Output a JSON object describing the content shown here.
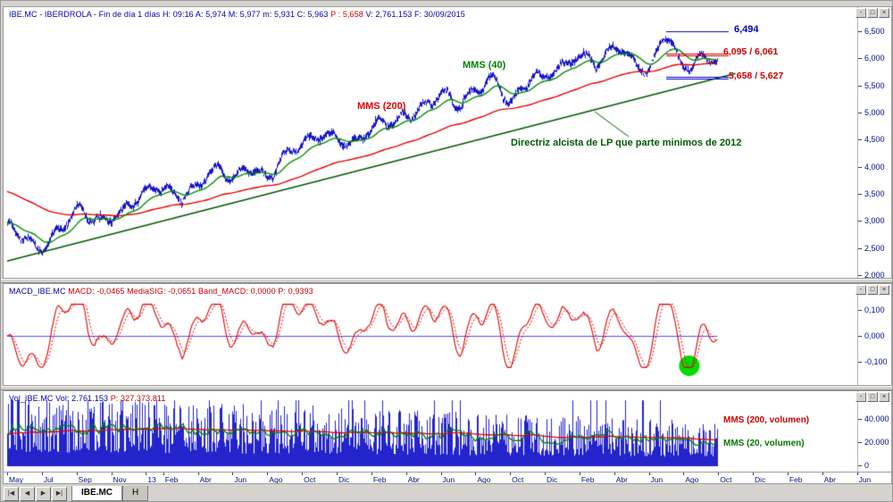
{
  "window_controls": {
    "minimize": "-",
    "maximize": "□",
    "close": "×"
  },
  "price_panel": {
    "header": {
      "left": "IBE.MC - IBERDROLA - Fin de día 1 días   H: 09:16   A: 5,974   M: 5,977   m: 5,931   C: 5,963   ",
      "mid": "P : 5,658",
      "right": "   V: 2,761.153   F: 30/09/2015"
    },
    "labels": {
      "mms40": "MMS (40)",
      "mms200": "MMS (200)",
      "trend": "Directriz alcista de LP que parte minimos de 2012"
    },
    "annotations": [
      {
        "label": "6,494"
      },
      {
        "label": "6,095 / 6,061"
      },
      {
        "label": "5,658 / 5,627"
      }
    ],
    "y_ticks": [
      {
        "label": "6,500",
        "value": 6.5
      },
      {
        "label": "6,000",
        "value": 6.0
      },
      {
        "label": "5,500",
        "value": 5.5
      },
      {
        "label": "5,000",
        "value": 5.0
      },
      {
        "label": "4,500",
        "value": 4.5
      },
      {
        "label": "4,000",
        "value": 4.0
      },
      {
        "label": "3,500",
        "value": 3.5
      },
      {
        "label": "3,000",
        "value": 3.0
      },
      {
        "label": "2,500",
        "value": 2.5
      },
      {
        "label": "2,000",
        "value": 2.0
      }
    ]
  },
  "macd_panel": {
    "header": {
      "name": "MACD_IBE.MC   ",
      "values": "MACD: -0,0465   MediaSIG: -0,0651   Band_MACD: 0,0000   ",
      "p": "P: 0,9393"
    },
    "y_ticks": [
      {
        "label": "0,100",
        "value": 0.1
      },
      {
        "label": "0,000",
        "value": 0.0
      },
      {
        "label": "-0,100",
        "value": -0.1
      }
    ]
  },
  "vol_panel": {
    "header": {
      "name": "Vol_IBE.MC   ",
      "values": "Vol: 2.761.153   ",
      "p": "P: 327.373.811"
    },
    "labels": {
      "mms200": "MMS (200, volumen)",
      "mms20": "MMS (20, volumen)"
    },
    "y_ticks": [
      {
        "label": "40.000",
        "value": 40000
      },
      {
        "label": "20.000",
        "value": 20000
      },
      {
        "label": "0",
        "value": 0
      }
    ]
  },
  "x_axis": {
    "labels": [
      {
        "text": "May",
        "m": 0
      },
      {
        "text": "Jul",
        "m": 2
      },
      {
        "text": "Sep",
        "m": 4
      },
      {
        "text": "Nov",
        "m": 6
      },
      {
        "text": "13",
        "m": 8
      },
      {
        "text": "Feb",
        "m": 9
      },
      {
        "text": "Abr",
        "m": 11
      },
      {
        "text": "Jun",
        "m": 13
      },
      {
        "text": "Ago",
        "m": 15
      },
      {
        "text": "Oct",
        "m": 17
      },
      {
        "text": "Dic",
        "m": 19
      },
      {
        "text": "Feb",
        "m": 21
      },
      {
        "text": "Abr",
        "m": 23
      },
      {
        "text": "Jun",
        "m": 25
      },
      {
        "text": "Ago",
        "m": 27
      },
      {
        "text": "Oct",
        "m": 29
      },
      {
        "text": "Dic",
        "m": 31
      },
      {
        "text": "Feb",
        "m": 33
      },
      {
        "text": "Abr",
        "m": 35
      },
      {
        "text": "Jun",
        "m": 37
      },
      {
        "text": "Ago",
        "m": 39
      },
      {
        "text": "Oct",
        "m": 41
      },
      {
        "text": "Dic",
        "m": 43
      },
      {
        "text": "Feb",
        "m": 45
      },
      {
        "text": "Abr",
        "m": 47
      },
      {
        "text": "Jun",
        "m": 49
      }
    ]
  },
  "tab_bar": {
    "nav": [
      "|◀",
      "◀",
      "▶",
      "▶|"
    ],
    "tabs": [
      {
        "label": "IBE.MC",
        "active": true
      },
      {
        "label": "H",
        "active": false
      }
    ]
  },
  "chart_data": {
    "type": "candlestick+indicators",
    "symbol": "IBE.MC",
    "title": "IBERDROLA - Fin de dia 1 dias",
    "price": {
      "x_unit": "month",
      "x_start_label": "May 2012",
      "x_end_label": "Sep 2015",
      "monthly_close": [
        2.9,
        2.72,
        2.58,
        2.95,
        3.28,
        3.1,
        3.14,
        3.35,
        3.52,
        3.62,
        3.48,
        3.72,
        3.95,
        3.8,
        4.02,
        3.92,
        4.2,
        4.42,
        4.55,
        4.5,
        4.48,
        4.62,
        4.8,
        4.95,
        5.12,
        5.28,
        5.12,
        5.35,
        5.58,
        5.18,
        5.55,
        5.62,
        5.85,
        6.08,
        5.95,
        6.18,
        6.02,
        5.88,
        6.42,
        5.78,
        5.963
      ],
      "last_close": 5.963,
      "ylim": [
        2.0,
        6.5
      ],
      "overlays": [
        {
          "name": "MMS (40)",
          "period": 40,
          "color": "#009000"
        },
        {
          "name": "MMS (200)",
          "period": 200,
          "color": "#e80000"
        }
      ],
      "trendline": {
        "label": "Directriz alcista de LP que parte minimos de 2012",
        "from_month_index": 0,
        "from_price": 2.26,
        "to_month_index": 42,
        "to_price": 5.72,
        "color": "#005a00"
      },
      "levels": [
        {
          "value": 6.494,
          "color": "#0000cc"
        },
        {
          "value": 6.095,
          "color": "#cc0000"
        },
        {
          "value": 6.061,
          "color": "#cc0000"
        },
        {
          "value": 5.658,
          "color": "#0000cc"
        },
        {
          "value": 5.627,
          "color": "#0000cc"
        }
      ]
    },
    "macd": {
      "type": "line",
      "macd_last": -0.0465,
      "signal_last": -0.0651,
      "band_macd": 0.0,
      "p": 0.9393,
      "ylim": [
        -0.13,
        0.13
      ],
      "yticks": [
        0.1,
        0.0,
        -0.1
      ],
      "zero_line": 0,
      "highlight": "green circle on final MACD low turning up"
    },
    "volume": {
      "type": "bar",
      "last": 2761153,
      "p": 327373811,
      "yticks": [
        0,
        20000,
        40000
      ],
      "typical_range": [
        8000,
        45000
      ],
      "overlays": [
        {
          "name": "MMS (200, volumen)",
          "period": 200,
          "color": "#e80000",
          "approx_level": 26000
        },
        {
          "name": "MMS (20, volumen)",
          "period": 20,
          "color": "#008000",
          "approx_level": 20000
        }
      ]
    }
  }
}
